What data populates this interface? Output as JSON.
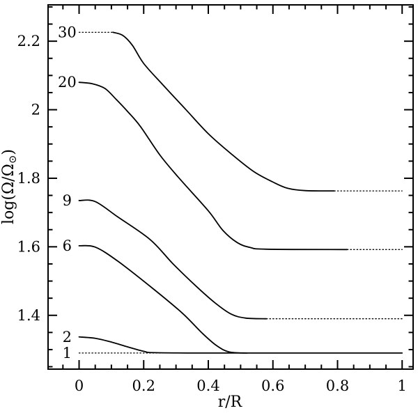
{
  "figure": {
    "background": "#ffffff",
    "ink": "#000000"
  },
  "chart_data": {
    "type": "line",
    "xlabel": "r/R",
    "ylabel": "log(Ω/Ω⊙)",
    "xlim": [
      -0.096,
      1.034
    ],
    "ylim": [
      1.243,
      2.306
    ],
    "grid": false,
    "legend_position": "none",
    "x_major_ticks": [
      0,
      0.2,
      0.4,
      0.6,
      0.8,
      1
    ],
    "x_tick_labels": [
      "0",
      "0.2",
      "0.4",
      "0.6",
      "0.8",
      "1"
    ],
    "x_minor_step": 0.05,
    "y_major_ticks": [
      1.4,
      1.6,
      1.8,
      2,
      2.2
    ],
    "y_tick_labels": [
      "1.4",
      "1.6",
      "1.8",
      "2",
      "2.2"
    ],
    "y_minor_step": 0.05,
    "series": [
      {
        "name": "1",
        "label": "1",
        "label_pos": {
          "x": -0.037,
          "y": 1.29
        },
        "center_value": 1.29,
        "surface_value": 1.29,
        "segments": [
          {
            "style": "dotted",
            "points": [
              [
                0,
                1.29
              ],
              [
                1.0,
                1.29
              ]
            ]
          }
        ]
      },
      {
        "name": "2",
        "label": "2",
        "label_pos": {
          "x": -0.037,
          "y": 1.337
        },
        "center_value": 1.337,
        "surface_value": 1.29,
        "segments": [
          {
            "style": "solid",
            "points": [
              [
                0,
                1.337
              ],
              [
                0.05,
                1.333
              ],
              [
                0.1,
                1.322
              ],
              [
                0.15,
                1.308
              ],
              [
                0.2,
                1.295
              ],
              [
                0.235,
                1.291
              ],
              [
                0.4,
                1.29
              ],
              [
                1.0,
                1.29
              ]
            ]
          }
        ]
      },
      {
        "name": "6",
        "label": "6",
        "label_pos": {
          "x": -0.037,
          "y": 1.603
        },
        "center_value": 1.603,
        "surface_value": 1.29,
        "segments": [
          {
            "style": "solid",
            "points": [
              [
                0,
                1.603
              ],
              [
                0.05,
                1.599
              ],
              [
                0.12,
                1.558
              ],
              [
                0.23,
                1.477
              ],
              [
                0.32,
                1.406
              ],
              [
                0.38,
                1.349
              ],
              [
                0.425,
                1.312
              ],
              [
                0.465,
                1.293
              ],
              [
                0.52,
                1.29
              ]
            ]
          }
        ]
      },
      {
        "name": "9",
        "label": "9",
        "label_pos": {
          "x": -0.037,
          "y": 1.735
        },
        "center_value": 1.735,
        "surface_value": 1.39,
        "segments": [
          {
            "style": "solid",
            "points": [
              [
                0,
                1.735
              ],
              [
                0.05,
                1.732
              ],
              [
                0.12,
                1.687
              ],
              [
                0.22,
                1.621
              ],
              [
                0.29,
                1.551
              ],
              [
                0.36,
                1.487
              ],
              [
                0.42,
                1.437
              ],
              [
                0.47,
                1.404
              ],
              [
                0.515,
                1.392
              ],
              [
                0.58,
                1.39
              ]
            ]
          },
          {
            "style": "dotted",
            "points": [
              [
                0.58,
                1.39
              ],
              [
                1.0,
                1.39
              ]
            ]
          }
        ]
      },
      {
        "name": "20",
        "label": "20",
        "label_pos": {
          "x": -0.037,
          "y": 2.08
        },
        "center_value": 2.08,
        "surface_value": 1.592,
        "segments": [
          {
            "style": "solid",
            "points": [
              [
                0,
                2.08
              ],
              [
                0.04,
                2.076
              ],
              [
                0.08,
                2.062
              ],
              [
                0.115,
                2.03
              ],
              [
                0.15,
                1.995
              ],
              [
                0.19,
                1.951
              ],
              [
                0.25,
                1.868
              ],
              [
                0.31,
                1.8
              ],
              [
                0.4,
                1.705
              ],
              [
                0.445,
                1.648
              ],
              [
                0.49,
                1.612
              ],
              [
                0.53,
                1.598
              ],
              [
                0.58,
                1.593
              ],
              [
                0.83,
                1.592
              ]
            ]
          },
          {
            "style": "dotted",
            "points": [
              [
                0.83,
                1.592
              ],
              [
                1.0,
                1.592
              ]
            ]
          }
        ]
      },
      {
        "name": "30",
        "label": "30",
        "label_pos": {
          "x": -0.037,
          "y": 2.226
        },
        "center_value": 2.226,
        "surface_value": 1.763,
        "segments": [
          {
            "style": "dotted",
            "points": [
              [
                0,
                2.226
              ],
              [
                0.105,
                2.226
              ]
            ]
          },
          {
            "style": "solid",
            "points": [
              [
                0.105,
                2.226
              ],
              [
                0.135,
                2.217
              ],
              [
                0.165,
                2.188
              ],
              [
                0.2,
                2.135
              ],
              [
                0.26,
                2.072
              ],
              [
                0.33,
                2.001
              ],
              [
                0.4,
                1.93
              ],
              [
                0.47,
                1.872
              ],
              [
                0.54,
                1.82
              ],
              [
                0.6,
                1.789
              ],
              [
                0.645,
                1.771
              ],
              [
                0.7,
                1.764
              ],
              [
                0.79,
                1.763
              ]
            ]
          },
          {
            "style": "dotted",
            "points": [
              [
                0.79,
                1.763
              ],
              [
                1.0,
                1.763
              ]
            ]
          }
        ]
      }
    ]
  }
}
